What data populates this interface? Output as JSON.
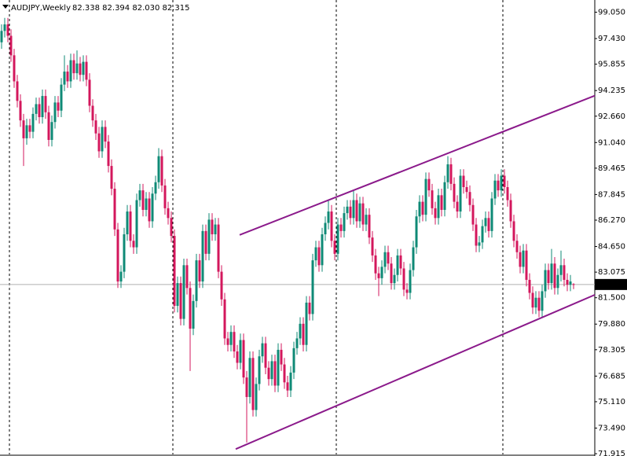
{
  "chart_data": {
    "type": "candlestick",
    "title": "AUDJPY,Weekly",
    "quote": "82.338 82.394 82.030 82.315",
    "bull_color": "#0f8a76",
    "bear_color": "#d3175c",
    "trendline_color": "#8b1a8b",
    "xlim": [
      -0.5,
      188.75
    ],
    "ylim": [
      71.87,
      99.8
    ],
    "yticks": [
      {
        "value": 99.05,
        "label": "99.050"
      },
      {
        "value": 97.43,
        "label": "97.430"
      },
      95.855,
      94.235,
      {
        "value": 92.66,
        "label": "92.660"
      },
      {
        "value": 91.04,
        "label": "91.040"
      },
      89.465,
      87.845,
      {
        "value": 86.27,
        "label": "86.270"
      },
      {
        "value": 84.65,
        "label": "84.650"
      },
      83.075,
      {
        "value": 81.5,
        "label": "81.500"
      },
      {
        "value": 79.88,
        "label": "79.880"
      },
      78.305,
      76.685,
      {
        "value": 75.11,
        "label": "75.110"
      },
      {
        "value": 73.49,
        "label": "73.490"
      },
      71.915
    ],
    "current_price": 82.315,
    "period_separators": [
      2.5,
      54.5,
      106.5,
      159.5
    ],
    "trendlines": [
      {
        "x": [
          75.75,
          188.75
        ],
        "y": [
          85.36,
          93.92
        ]
      },
      {
        "x": [
          74.5,
          188.75
        ],
        "y": [
          72.2,
          81.68
        ]
      }
    ],
    "open": [
      97.2,
      97.9,
      98.3,
      97.6,
      96.4,
      94.8,
      93.6,
      92.4,
      91.3,
      92.1,
      91.7,
      92.8,
      93.4,
      92.6,
      93.9,
      92.9,
      91.2,
      92.3,
      93.5,
      93.0,
      94.6,
      95.4,
      94.8,
      96.1,
      95.3,
      95.9,
      95.2,
      96.0,
      94.9,
      93.3,
      92.4,
      91.6,
      90.5,
      92.0,
      91.1,
      89.6,
      88.2,
      85.7,
      82.5,
      83.1,
      85.4,
      86.8,
      85.0,
      84.6,
      87.5,
      88.1,
      86.9,
      87.6,
      86.2,
      87.9,
      88.6,
      90.2,
      88.4,
      87.0,
      86.4,
      85.3,
      81.0,
      82.4,
      80.2,
      83.5,
      82.1,
      79.6,
      81.3,
      83.8,
      82.5,
      85.6,
      84.2,
      86.3,
      85.4,
      86.0,
      83.1,
      81.4,
      79.0,
      78.6,
      79.4,
      78.2,
      77.5,
      78.9,
      76.6,
      75.4,
      77.8,
      74.6,
      76.2,
      77.9,
      78.7,
      77.2,
      76.5,
      77.6,
      76.1,
      78.3,
      77.4,
      76.3,
      75.8,
      76.9,
      78.4,
      79.0,
      79.9,
      78.6,
      81.2,
      80.5,
      83.8,
      84.6,
      83.5,
      85.4,
      86.1,
      86.8,
      85.0,
      84.2,
      86.0,
      85.6,
      86.7,
      87.1,
      86.4,
      87.5,
      86.2,
      87.3,
      86.0,
      86.6,
      85.2,
      84.1,
      83.0,
      82.7,
      83.4,
      84.3,
      83.6,
      82.4,
      82.9,
      84.1,
      83.3,
      82.0,
      81.8,
      83.2,
      84.6,
      86.5,
      87.4,
      86.6,
      88.8,
      88.1,
      87.0,
      86.4,
      87.8,
      86.9,
      88.6,
      89.7,
      88.5,
      87.4,
      86.8,
      89.0,
      88.3,
      88.0,
      87.2,
      86.0,
      84.7,
      84.9,
      85.9,
      86.4,
      85.6,
      87.6,
      88.7,
      88.1,
      89.0,
      88.3,
      87.5,
      86.2,
      85.0,
      84.3,
      83.4,
      84.4,
      82.6,
      81.8,
      80.9,
      81.5,
      80.7,
      81.9,
      83.2,
      82.4,
      83.6,
      82.1,
      82.9,
      83.5,
      82.6,
      82.3,
      82.338
    ],
    "high": [
      98.3,
      98.7,
      98.7,
      98.0,
      96.8,
      95.2,
      94.0,
      92.8,
      92.5,
      92.5,
      93.2,
      93.8,
      93.8,
      94.3,
      94.3,
      93.3,
      92.7,
      93.9,
      93.9,
      95.0,
      96.4,
      95.8,
      96.5,
      96.5,
      96.7,
      96.3,
      96.4,
      96.4,
      95.3,
      93.7,
      92.8,
      92.0,
      92.4,
      92.4,
      91.5,
      90.0,
      88.6,
      86.1,
      83.5,
      85.8,
      87.2,
      87.2,
      85.4,
      87.9,
      88.5,
      88.5,
      88.0,
      88.0,
      88.3,
      89.0,
      90.7,
      90.6,
      88.8,
      87.4,
      86.8,
      85.7,
      82.8,
      82.8,
      83.9,
      83.9,
      82.5,
      81.7,
      84.2,
      84.2,
      86.0,
      86.0,
      86.7,
      86.7,
      86.4,
      86.4,
      83.5,
      81.8,
      79.4,
      79.8,
      79.8,
      78.6,
      79.3,
      79.3,
      77.0,
      78.2,
      78.2,
      76.6,
      78.3,
      79.1,
      79.1,
      77.6,
      78.0,
      78.0,
      78.7,
      78.7,
      77.8,
      76.7,
      77.3,
      78.8,
      79.4,
      80.3,
      80.3,
      81.6,
      81.6,
      84.2,
      85.0,
      85.0,
      85.8,
      86.5,
      87.5,
      87.2,
      85.4,
      86.4,
      86.4,
      87.1,
      87.5,
      87.5,
      88.1,
      87.9,
      87.7,
      87.7,
      87.0,
      87.0,
      85.6,
      84.5,
      83.4,
      83.8,
      84.7,
      84.7,
      84.0,
      83.3,
      84.5,
      84.5,
      83.7,
      82.4,
      83.6,
      85.0,
      86.9,
      87.8,
      87.8,
      89.2,
      89.2,
      88.5,
      87.4,
      88.2,
      88.2,
      89.0,
      90.2,
      90.1,
      88.9,
      87.8,
      89.4,
      89.4,
      88.7,
      88.4,
      87.6,
      86.4,
      85.3,
      86.3,
      86.8,
      86.8,
      88.0,
      89.1,
      89.1,
      89.4,
      89.4,
      88.7,
      87.9,
      86.6,
      85.4,
      84.7,
      84.8,
      84.8,
      83.0,
      82.2,
      81.9,
      81.9,
      82.3,
      83.6,
      83.6,
      84.5,
      84.0,
      83.3,
      84.4,
      83.9,
      83.0,
      82.9,
      82.394
    ],
    "low": [
      96.8,
      97.5,
      97.2,
      96.0,
      94.4,
      93.2,
      92.0,
      89.6,
      90.9,
      91.3,
      91.3,
      92.4,
      92.2,
      92.2,
      92.5,
      90.8,
      90.8,
      91.9,
      92.6,
      92.6,
      94.2,
      94.4,
      94.4,
      94.9,
      94.9,
      94.8,
      94.8,
      94.5,
      92.9,
      92.0,
      91.2,
      90.1,
      90.1,
      90.7,
      89.2,
      87.8,
      85.3,
      82.1,
      82.1,
      82.7,
      85.0,
      84.6,
      84.2,
      84.2,
      87.1,
      86.5,
      86.5,
      85.8,
      85.8,
      87.5,
      88.2,
      88.0,
      86.6,
      86.0,
      84.9,
      80.6,
      80.6,
      79.8,
      79.8,
      81.7,
      77.0,
      79.2,
      80.9,
      82.1,
      82.1,
      83.8,
      83.8,
      85.0,
      85.0,
      82.7,
      81.0,
      78.6,
      78.2,
      78.2,
      77.8,
      77.1,
      77.1,
      76.2,
      72.6,
      75.0,
      74.2,
      74.2,
      75.8,
      77.5,
      76.8,
      76.1,
      76.1,
      75.7,
      75.7,
      77.0,
      75.9,
      75.4,
      75.4,
      76.5,
      78.0,
      78.6,
      78.2,
      78.2,
      80.1,
      80.1,
      83.4,
      83.1,
      83.1,
      85.0,
      85.7,
      84.6,
      83.8,
      83.8,
      85.2,
      85.2,
      86.3,
      86.0,
      86.0,
      85.8,
      85.8,
      85.6,
      85.6,
      84.8,
      83.7,
      82.6,
      81.6,
      82.3,
      83.0,
      83.2,
      82.0,
      82.0,
      82.5,
      82.9,
      81.6,
      81.4,
      81.4,
      82.8,
      84.2,
      86.1,
      86.2,
      86.2,
      87.7,
      86.6,
      86.0,
      86.0,
      86.5,
      86.5,
      88.2,
      88.1,
      87.0,
      86.4,
      86.4,
      87.9,
      87.6,
      86.8,
      85.6,
      84.3,
      84.3,
      84.5,
      85.5,
      85.2,
      85.2,
      87.2,
      87.7,
      87.7,
      87.9,
      87.1,
      85.8,
      84.6,
      83.9,
      83.0,
      83.0,
      82.2,
      81.4,
      80.5,
      80.5,
      80.3,
      80.3,
      81.5,
      82.0,
      82.0,
      81.7,
      81.7,
      82.5,
      82.2,
      81.9,
      81.9,
      82.03
    ],
    "close": [
      97.9,
      98.3,
      97.6,
      96.4,
      94.8,
      93.6,
      92.4,
      91.3,
      92.1,
      91.7,
      92.8,
      93.4,
      92.6,
      93.9,
      92.9,
      91.2,
      92.3,
      93.5,
      93.0,
      94.6,
      95.4,
      94.8,
      96.1,
      95.3,
      95.9,
      95.2,
      96.0,
      94.9,
      93.3,
      92.4,
      91.6,
      90.5,
      92.0,
      91.1,
      89.6,
      88.2,
      85.7,
      82.5,
      83.1,
      85.4,
      86.8,
      85.0,
      84.6,
      87.5,
      88.1,
      86.9,
      87.6,
      86.2,
      87.9,
      88.6,
      90.2,
      88.4,
      87.0,
      86.4,
      85.3,
      81.0,
      82.4,
      80.2,
      83.5,
      82.1,
      79.6,
      81.3,
      83.8,
      82.5,
      85.6,
      84.2,
      86.3,
      85.4,
      86.0,
      83.1,
      81.4,
      79.0,
      78.6,
      79.4,
      78.2,
      77.5,
      78.9,
      76.6,
      75.4,
      77.8,
      74.6,
      76.2,
      77.9,
      78.7,
      77.2,
      76.5,
      77.6,
      76.1,
      78.3,
      77.4,
      76.3,
      75.8,
      76.9,
      78.4,
      79.0,
      79.9,
      78.6,
      81.2,
      80.5,
      83.8,
      84.6,
      83.5,
      85.4,
      86.1,
      86.8,
      85.0,
      84.2,
      86.0,
      85.6,
      86.7,
      87.1,
      86.4,
      87.5,
      86.2,
      87.3,
      86.0,
      86.6,
      85.2,
      84.1,
      83.0,
      82.7,
      83.4,
      84.3,
      83.6,
      82.4,
      82.9,
      84.1,
      83.3,
      82.0,
      81.8,
      83.2,
      84.6,
      86.5,
      87.4,
      86.6,
      88.8,
      88.1,
      87.0,
      86.4,
      87.8,
      86.9,
      88.6,
      89.7,
      88.5,
      87.4,
      86.8,
      89.0,
      88.3,
      88.0,
      87.2,
      86.0,
      84.7,
      84.9,
      85.9,
      86.4,
      85.6,
      87.6,
      88.7,
      88.1,
      89.0,
      88.3,
      87.5,
      86.2,
      85.0,
      84.3,
      83.4,
      84.4,
      82.6,
      81.8,
      80.9,
      81.5,
      80.7,
      81.9,
      83.2,
      82.4,
      83.6,
      82.1,
      82.9,
      83.5,
      82.6,
      82.3,
      82.5,
      82.315
    ]
  }
}
